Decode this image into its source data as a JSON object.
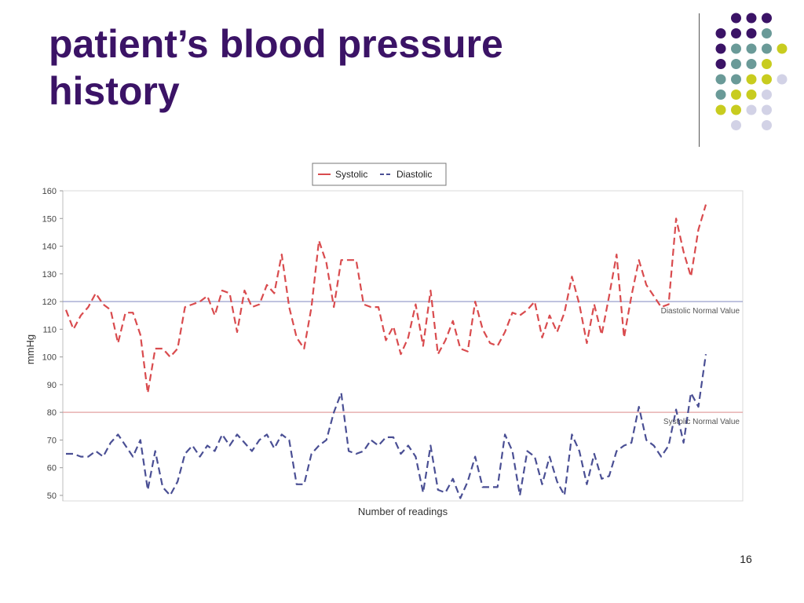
{
  "slide": {
    "title_line1": "patient’s blood pressure",
    "title_line2": "history",
    "page_number": "16"
  },
  "decoration": {
    "colors": {
      "purple": "#3b1366",
      "teal": "#6a9a98",
      "yellow": "#c8cc1f",
      "lavender": "#d2d2e6",
      "title": "#3b1366"
    },
    "dot_rows": [
      [
        "",
        "purple",
        "purple",
        "purple",
        ""
      ],
      [
        "purple",
        "purple",
        "purple",
        "teal",
        ""
      ],
      [
        "purple",
        "teal",
        "teal",
        "teal",
        "yellow"
      ],
      [
        "purple",
        "teal",
        "teal",
        "yellow",
        ""
      ],
      [
        "teal",
        "teal",
        "yellow",
        "yellow",
        "lavender"
      ],
      [
        "teal",
        "yellow",
        "yellow",
        "lavender",
        ""
      ],
      [
        "yellow",
        "yellow",
        "lavender",
        "lavender",
        ""
      ],
      [
        "",
        "lavender",
        "",
        "lavender",
        ""
      ]
    ]
  },
  "chart_data": {
    "type": "line",
    "title": "",
    "xlabel": "Number of readings",
    "ylabel": "mmHg",
    "ylim": [
      48,
      160
    ],
    "yticks": [
      50,
      60,
      70,
      80,
      90,
      100,
      110,
      120,
      130,
      140,
      150,
      160
    ],
    "grid": false,
    "legend": {
      "position": "top-center",
      "entries": [
        "Systolic",
        "Diastolic"
      ]
    },
    "reference_lines": [
      {
        "label": "Diastolic Normal Value",
        "value": 120,
        "color": "#8d95c6"
      },
      {
        "label": "Systolic Normal Value",
        "value": 80,
        "color": "#e3a0a0"
      }
    ],
    "series": [
      {
        "name": "Systolic",
        "color": "#d94b4e",
        "style": "dashed",
        "values": [
          117,
          110,
          115,
          118,
          123,
          119,
          117,
          105,
          116,
          116,
          108,
          87,
          103,
          103,
          100,
          103,
          118,
          119,
          120,
          122,
          115,
          124,
          123,
          109,
          124,
          118,
          119,
          126,
          123,
          137,
          118,
          107,
          103,
          118,
          142,
          134,
          118,
          135,
          135,
          135,
          119,
          118,
          118,
          106,
          111,
          101,
          107,
          119,
          104,
          124,
          101,
          106,
          113,
          103,
          102,
          120,
          110,
          105,
          104,
          109,
          116,
          115,
          117,
          120,
          107,
          115,
          109,
          116,
          129,
          119,
          105,
          119,
          108,
          122,
          137,
          107,
          122,
          135,
          126,
          122,
          118,
          119,
          150,
          138,
          129,
          146,
          155
        ]
      },
      {
        "name": "Diastolic",
        "color": "#4a4f94",
        "style": "dashed",
        "values": [
          65,
          65,
          64,
          64,
          66,
          64,
          69,
          72,
          68,
          64,
          70,
          52,
          66,
          53,
          50,
          55,
          65,
          68,
          64,
          68,
          66,
          72,
          68,
          72,
          69,
          66,
          70,
          72,
          67,
          72,
          70,
          54,
          54,
          65,
          68,
          70,
          80,
          87,
          66,
          65,
          66,
          70,
          68,
          71,
          71,
          65,
          68,
          64,
          51,
          68,
          52,
          51,
          56,
          49,
          55,
          64,
          53,
          53,
          53,
          72,
          66,
          50,
          66,
          64,
          54,
          64,
          55,
          50,
          72,
          66,
          54,
          65,
          56,
          57,
          66,
          68,
          69,
          82,
          70,
          68,
          64,
          68,
          81,
          69,
          87,
          82,
          101
        ]
      }
    ]
  }
}
